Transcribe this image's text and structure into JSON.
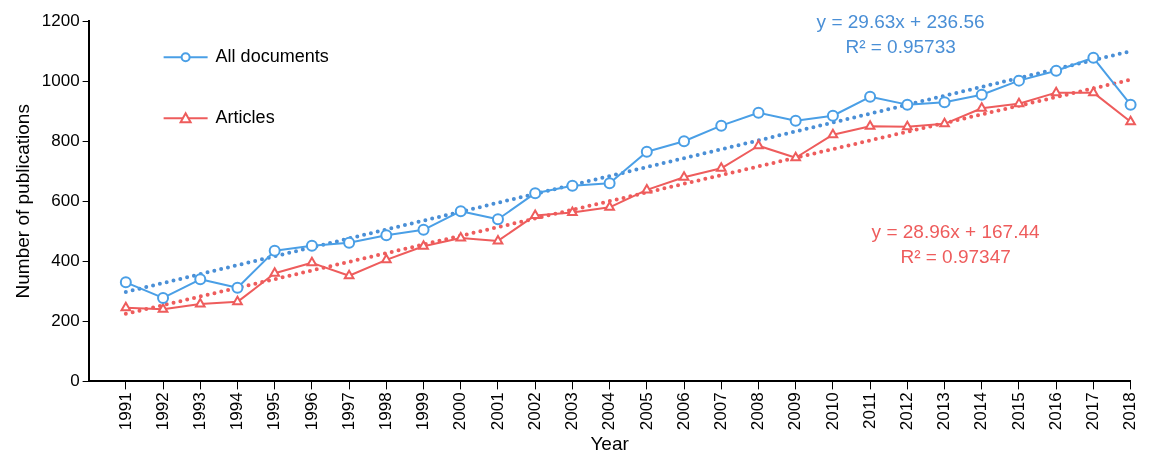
{
  "chart_data": {
    "type": "line",
    "xlabel": "Year",
    "ylabel": "Number of publications",
    "x": [
      1991,
      1992,
      1993,
      1994,
      1995,
      1996,
      1997,
      1998,
      1999,
      2000,
      2001,
      2002,
      2003,
      2004,
      2005,
      2006,
      2007,
      2008,
      2009,
      2010,
      2011,
      2012,
      2013,
      2014,
      2015,
      2016,
      2017,
      2018
    ],
    "series": [
      {
        "name": "All documents",
        "color": "#4a9fe6",
        "marker": "circle",
        "values": [
          330,
          278,
          340,
          312,
          435,
          452,
          462,
          487,
          505,
          567,
          540,
          627,
          652,
          660,
          765,
          800,
          852,
          895,
          868,
          885,
          948,
          922,
          930,
          955,
          1002,
          1035,
          1078,
          922
        ]
      },
      {
        "name": "Articles",
        "color": "#ee5c5c",
        "marker": "triangle",
        "values": [
          245,
          240,
          258,
          265,
          360,
          395,
          352,
          405,
          450,
          478,
          468,
          553,
          563,
          580,
          638,
          680,
          710,
          785,
          745,
          822,
          850,
          848,
          858,
          910,
          925,
          962,
          962,
          865
        ]
      },
      {
        "type": "line",
        "color": "#4a8fd6",
        "line_style": "dotted",
        "marker": "none",
        "values": [
          298,
          null,
          null,
          null,
          null,
          null,
          null,
          null,
          null,
          null,
          null,
          null,
          null,
          null,
          null,
          null,
          null,
          null,
          null,
          null,
          null,
          null,
          null,
          null,
          null,
          null,
          null,
          1100
        ]
      },
      {
        "type": "line",
        "color": "#ee5c5c",
        "line_style": "dotted",
        "marker": "none",
        "values": [
          225,
          null,
          null,
          null,
          null,
          null,
          null,
          null,
          null,
          null,
          null,
          null,
          null,
          null,
          null,
          null,
          null,
          null,
          null,
          null,
          null,
          null,
          null,
          null,
          null,
          null,
          null,
          1005
        ]
      }
    ],
    "annotations": [
      "y = 29.63x + 236.56",
      "R² = 0.95733",
      "y = 28.96x + 167.44",
      "R² = 0.97347"
    ],
    "xlim": [
      1990,
      2018
    ],
    "xticks": [
      1991,
      1992,
      1993,
      1994,
      1995,
      1996,
      1997,
      1998,
      1999,
      2000,
      2001,
      2002,
      2003,
      2004,
      2005,
      2006,
      2007,
      2008,
      2009,
      2010,
      2011,
      2012,
      2013,
      2014,
      2015,
      2016,
      2017,
      2018
    ],
    "ylim": [
      0,
      1200
    ],
    "yticks": [
      0,
      200,
      400,
      600,
      800,
      1000,
      1200
    ],
    "grid": false,
    "legend": "top left"
  }
}
